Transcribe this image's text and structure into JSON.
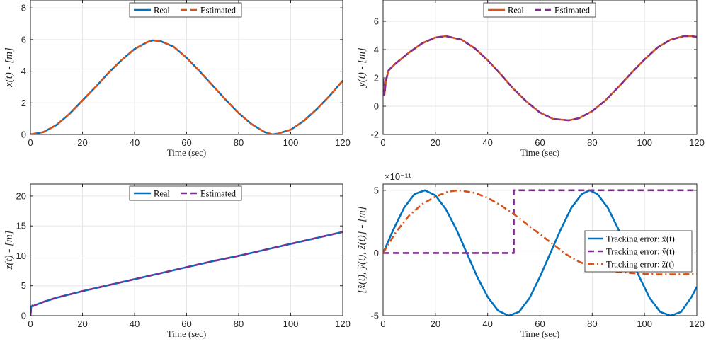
{
  "chart_data": [
    {
      "id": "x",
      "type": "line",
      "title": "",
      "xlabel": "Time (sec)",
      "ylabel": "x(t) - [m]",
      "xlim": [
        0,
        120
      ],
      "ylim": [
        0,
        8.5
      ],
      "xticks": [
        "0",
        "20",
        "40",
        "60",
        "80",
        "100",
        "120"
      ],
      "yticks": [
        "0",
        "2",
        "4",
        "6",
        "8"
      ],
      "legend": {
        "position": "top-center",
        "entries": [
          "Real",
          "Estimated"
        ]
      },
      "grid": true,
      "series": [
        {
          "name": "Real",
          "color": "#0072BD",
          "style": "solid",
          "x": [
            0,
            5,
            10,
            15,
            20,
            25,
            30,
            35,
            40,
            45,
            47,
            50,
            55,
            60,
            65,
            70,
            75,
            80,
            85,
            90,
            93,
            95,
            100,
            105,
            110,
            115,
            120
          ],
          "y": [
            0.0,
            0.15,
            0.6,
            1.3,
            2.15,
            3.0,
            3.9,
            4.7,
            5.4,
            5.85,
            5.95,
            5.9,
            5.55,
            4.85,
            4.0,
            3.1,
            2.2,
            1.35,
            0.65,
            0.15,
            0.0,
            0.05,
            0.3,
            0.85,
            1.6,
            2.45,
            3.4
          ]
        },
        {
          "name": "Estimated",
          "color": "#D95319",
          "style": "dashed",
          "x": [
            0,
            5,
            10,
            15,
            20,
            25,
            30,
            35,
            40,
            45,
            47,
            50,
            55,
            60,
            65,
            70,
            75,
            80,
            85,
            90,
            93,
            95,
            100,
            105,
            110,
            115,
            120
          ],
          "y": [
            0.0,
            0.15,
            0.6,
            1.3,
            2.15,
            3.0,
            3.9,
            4.7,
            5.4,
            5.85,
            5.95,
            5.9,
            5.55,
            4.85,
            4.0,
            3.1,
            2.2,
            1.35,
            0.65,
            0.15,
            0.0,
            0.05,
            0.3,
            0.85,
            1.6,
            2.45,
            3.4
          ]
        }
      ]
    },
    {
      "id": "y",
      "type": "line",
      "title": "",
      "xlabel": "Time (sec)",
      "ylabel": "y(t) - [m]",
      "xlim": [
        0,
        120
      ],
      "ylim": [
        -2,
        7.5
      ],
      "xticks": [
        "0",
        "20",
        "40",
        "60",
        "80",
        "100",
        "120"
      ],
      "yticks": [
        "-2",
        "0",
        "2",
        "4",
        "6"
      ],
      "legend": {
        "position": "top-center",
        "entries": [
          "Real",
          "Estimated"
        ]
      },
      "grid": true,
      "series": [
        {
          "name": "Real",
          "color": "#D95319",
          "style": "solid",
          "x": [
            0,
            0.5,
            1,
            2,
            3,
            5,
            10,
            15,
            20,
            24,
            30,
            35,
            40,
            45,
            50,
            55,
            60,
            65,
            71,
            75,
            80,
            85,
            90,
            95,
            100,
            105,
            110,
            115,
            118,
            120
          ],
          "y": [
            1.9,
            0.8,
            1.7,
            2.5,
            2.7,
            3.05,
            3.8,
            4.45,
            4.85,
            4.95,
            4.7,
            4.1,
            3.25,
            2.25,
            1.2,
            0.3,
            -0.45,
            -0.9,
            -1.0,
            -0.85,
            -0.35,
            0.4,
            1.35,
            2.35,
            3.3,
            4.15,
            4.7,
            4.95,
            4.95,
            4.9
          ]
        },
        {
          "name": "Estimated",
          "color": "#7E2F8E",
          "style": "dashed",
          "x": [
            0,
            0.5,
            1,
            2,
            3,
            5,
            10,
            15,
            20,
            24,
            30,
            35,
            40,
            45,
            50,
            55,
            60,
            65,
            71,
            75,
            80,
            85,
            90,
            95,
            100,
            105,
            110,
            115,
            118,
            120
          ],
          "y": [
            1.9,
            0.8,
            1.7,
            2.5,
            2.7,
            3.05,
            3.8,
            4.45,
            4.85,
            4.95,
            4.7,
            4.1,
            3.25,
            2.25,
            1.2,
            0.3,
            -0.45,
            -0.9,
            -1.0,
            -0.85,
            -0.35,
            0.4,
            1.35,
            2.35,
            3.3,
            4.15,
            4.7,
            4.95,
            4.95,
            4.9
          ]
        }
      ]
    },
    {
      "id": "z",
      "type": "line",
      "title": "",
      "xlabel": "Time (sec)",
      "ylabel": "z(t) - [m]",
      "xlim": [
        0,
        120
      ],
      "ylim": [
        0,
        22
      ],
      "xticks": [
        "0",
        "20",
        "40",
        "60",
        "80",
        "100",
        "120"
      ],
      "yticks": [
        "0",
        "5",
        "10",
        "15",
        "20"
      ],
      "legend": {
        "position": "top-center",
        "entries": [
          "Real",
          "Estimated"
        ]
      },
      "grid": true,
      "series": [
        {
          "name": "Real",
          "color": "#0072BD",
          "style": "solid",
          "x": [
            0,
            0.3,
            0.8,
            1,
            2,
            5,
            10,
            20,
            30,
            40,
            50,
            60,
            70,
            80,
            90,
            100,
            110,
            120
          ],
          "y": [
            0,
            1.5,
            1.7,
            1.6,
            1.8,
            2.3,
            3.0,
            4.1,
            5.1,
            6.1,
            7.1,
            8.1,
            9.1,
            10.0,
            11.0,
            12.0,
            13.0,
            14.0
          ]
        },
        {
          "name": "Estimated",
          "color": "#7E2F8E",
          "style": "dashed",
          "x": [
            0,
            0.3,
            0.8,
            1,
            2,
            5,
            10,
            20,
            30,
            40,
            50,
            60,
            70,
            80,
            90,
            100,
            110,
            120
          ],
          "y": [
            0,
            1.5,
            1.7,
            1.6,
            1.8,
            2.3,
            3.0,
            4.1,
            5.1,
            6.1,
            7.1,
            8.1,
            9.1,
            10.0,
            11.0,
            12.0,
            13.0,
            14.0
          ]
        }
      ]
    },
    {
      "id": "err",
      "type": "line",
      "title": "",
      "xlabel": "Time (sec)",
      "ylabel": "[x̃(t), ỹ(t), z̃(t)] - [m]",
      "exponent_label": "×10⁻¹¹",
      "xlim": [
        0,
        120
      ],
      "ylim": [
        -5,
        5.5
      ],
      "xticks": [
        "0",
        "20",
        "40",
        "60",
        "80",
        "100",
        "120"
      ],
      "yticks": [
        "-5",
        "0",
        "5"
      ],
      "legend": {
        "position": "right",
        "entries": [
          "Tracking error: x̃(t)",
          "Tracking error: ỹ(t)",
          "Tracking error: z̃(t)"
        ]
      },
      "grid": true,
      "series": [
        {
          "name": "Tracking error: x̃(t)",
          "color": "#0072BD",
          "style": "solid",
          "x": [
            0,
            4,
            8,
            12,
            16,
            20,
            24,
            28,
            32,
            36,
            40,
            44,
            48,
            52,
            56,
            60,
            64,
            68,
            72,
            76,
            79,
            82,
            86,
            90,
            94,
            98,
            102,
            106,
            110,
            114,
            118,
            120
          ],
          "y": [
            0,
            1.9,
            3.6,
            4.7,
            5.0,
            4.6,
            3.5,
            1.9,
            0.0,
            -1.9,
            -3.5,
            -4.6,
            -5.0,
            -4.7,
            -3.6,
            -1.9,
            0.0,
            1.9,
            3.6,
            4.7,
            5.0,
            4.7,
            3.6,
            1.9,
            0.0,
            -1.9,
            -3.6,
            -4.7,
            -5.0,
            -4.7,
            -3.5,
            -2.7
          ]
        },
        {
          "name": "Tracking error: ỹ(t)",
          "color": "#7E2F8E",
          "style": "dashed",
          "x": [
            0,
            50,
            50,
            120
          ],
          "y": [
            0,
            0,
            5,
            5
          ]
        },
        {
          "name": "Tracking error: z̃(t)",
          "color": "#D95319",
          "style": "dashdot",
          "x": [
            0,
            5,
            10,
            15,
            20,
            25,
            29,
            35,
            40,
            45,
            50,
            55,
            60,
            65,
            70,
            75,
            80,
            85,
            90,
            95,
            100,
            105,
            110,
            115,
            120
          ],
          "y": [
            0,
            1.7,
            3.0,
            3.9,
            4.5,
            4.9,
            5.0,
            4.8,
            4.4,
            3.8,
            3.1,
            2.3,
            1.5,
            0.7,
            -0.1,
            -0.7,
            -1.1,
            -1.4,
            -1.5,
            -1.6,
            -1.65,
            -1.7,
            -1.7,
            -1.7,
            -1.65
          ]
        }
      ]
    }
  ]
}
